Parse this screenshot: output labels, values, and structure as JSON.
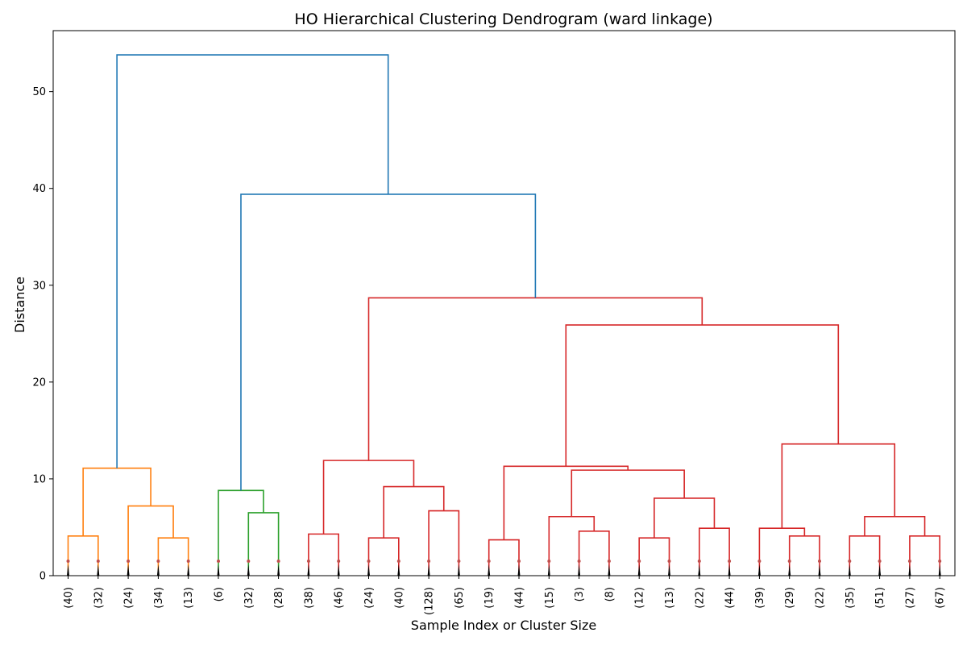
{
  "chart_data": {
    "type": "dendrogram",
    "title": "HO Hierarchical Clustering Dendrogram (ward linkage)",
    "xlabel": "Sample Index or Cluster Size",
    "ylabel": "Distance",
    "ylim": [
      0,
      56.3
    ],
    "yticks": [
      0,
      10,
      20,
      30,
      40,
      50
    ],
    "leaves": [
      "(40)",
      "(32)",
      "(24)",
      "(34)",
      "(13)",
      "(6)",
      "(32)",
      "(28)",
      "(38)",
      "(46)",
      "(24)",
      "(40)",
      "(128)",
      "(65)",
      "(19)",
      "(44)",
      "(15)",
      "(3)",
      "(8)",
      "(12)",
      "(13)",
      "(22)",
      "(44)",
      "(39)",
      "(29)",
      "(22)",
      "(35)",
      "(51)",
      "(27)",
      "(67)"
    ],
    "colors": {
      "root": "#1f77b4",
      "cluster_orange": "#ff7f0e",
      "cluster_green": "#2ca02c",
      "cluster_red": "#d62728",
      "leaf_marks": "#000000",
      "leaf_dots": "#c0504d"
    },
    "merges": [
      {
        "id": "O1",
        "children": [
          0,
          1
        ],
        "height": 4.1,
        "color": "orange"
      },
      {
        "id": "O2",
        "children": [
          3,
          4
        ],
        "height": 3.9,
        "color": "orange"
      },
      {
        "id": "O3",
        "children": [
          2,
          "O2"
        ],
        "height": 7.2,
        "color": "orange"
      },
      {
        "id": "O4",
        "children": [
          "O1",
          "O3"
        ],
        "height": 11.1,
        "color": "orange"
      },
      {
        "id": "G1",
        "children": [
          6,
          7
        ],
        "height": 6.5,
        "color": "green"
      },
      {
        "id": "G2",
        "children": [
          5,
          "G1"
        ],
        "height": 8.8,
        "color": "green"
      },
      {
        "id": "R1",
        "children": [
          8,
          9
        ],
        "height": 4.3,
        "color": "red"
      },
      {
        "id": "R2",
        "children": [
          10,
          11
        ],
        "height": 3.9,
        "color": "red"
      },
      {
        "id": "R3",
        "children": [
          12,
          13
        ],
        "height": 6.7,
        "color": "red"
      },
      {
        "id": "R4",
        "children": [
          "R2",
          "R3"
        ],
        "height": 9.2,
        "color": "red"
      },
      {
        "id": "R5",
        "children": [
          "R1",
          "R4"
        ],
        "height": 11.9,
        "color": "red"
      },
      {
        "id": "R6",
        "children": [
          14,
          15
        ],
        "height": 3.7,
        "color": "red"
      },
      {
        "id": "R7",
        "children": [
          17,
          18
        ],
        "height": 4.6,
        "color": "red"
      },
      {
        "id": "R8",
        "children": [
          16,
          "R7"
        ],
        "height": 6.1,
        "color": "red"
      },
      {
        "id": "R9",
        "children": [
          19,
          20
        ],
        "height": 3.9,
        "color": "red"
      },
      {
        "id": "R10",
        "children": [
          21,
          22
        ],
        "height": 4.9,
        "color": "red"
      },
      {
        "id": "R11",
        "children": [
          "R9",
          "R10"
        ],
        "height": 8.0,
        "color": "red"
      },
      {
        "id": "R12",
        "children": [
          "R8",
          "R11"
        ],
        "height": 10.9,
        "color": "red"
      },
      {
        "id": "R13",
        "children": [
          "R6",
          "R12"
        ],
        "height": 11.3,
        "color": "red"
      },
      {
        "id": "R14",
        "children": [
          24,
          25
        ],
        "height": 4.1,
        "color": "red"
      },
      {
        "id": "R15",
        "children": [
          23,
          "R14"
        ],
        "height": 4.9,
        "color": "red"
      },
      {
        "id": "R16",
        "children": [
          26,
          27
        ],
        "height": 4.1,
        "color": "red"
      },
      {
        "id": "R17",
        "children": [
          28,
          29
        ],
        "height": 4.1,
        "color": "red"
      },
      {
        "id": "R18",
        "children": [
          "R16",
          "R17"
        ],
        "height": 6.1,
        "color": "red"
      },
      {
        "id": "R19",
        "children": [
          "R15",
          "R18"
        ],
        "height": 13.6,
        "color": "red"
      },
      {
        "id": "R20",
        "children": [
          "R13",
          "R19"
        ],
        "height": 25.9,
        "color": "red"
      },
      {
        "id": "R21",
        "children": [
          "R5",
          "R20"
        ],
        "height": 28.7,
        "color": "red"
      },
      {
        "id": "B1",
        "children": [
          "G2",
          "R21"
        ],
        "height": 39.4,
        "color": "blue"
      },
      {
        "id": "B2",
        "children": [
          "O4",
          "B1"
        ],
        "height": 53.8,
        "color": "blue"
      }
    ]
  }
}
